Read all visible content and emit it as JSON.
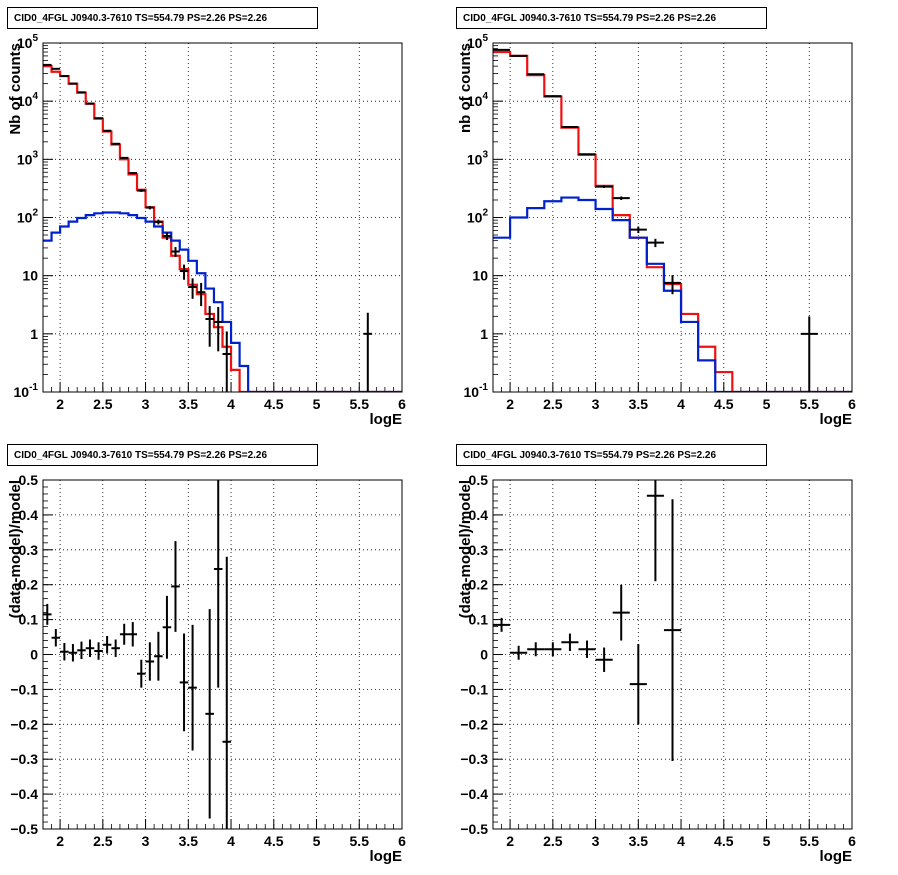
{
  "colors": {
    "data": "#000000",
    "total_model": "#ee1111",
    "source_model": "#0022cc",
    "grid": "#000000"
  },
  "chart_data": [
    {
      "id": "top-left",
      "type": "line",
      "title": "CID0_4FGL J0940.3-7610 TS=554.79 PS=2.26 PS=2.26",
      "xlabel": "logE",
      "ylabel": "Nb of counts",
      "xlim": [
        1.8,
        6.0
      ],
      "ylim": [
        0.1,
        100000
      ],
      "yscale": "log",
      "grid": true,
      "xticks": [
        "2",
        "2.5",
        "3",
        "3.5",
        "4",
        "4.5",
        "5",
        "5.5",
        "6"
      ],
      "yticks": [
        "10^-1",
        "1",
        "10",
        "10^2",
        "10^3",
        "10^4",
        "10^5"
      ],
      "series": [
        {
          "kind": "model",
          "color_key": "total_model",
          "edges": [
            1.8,
            1.9,
            2.0,
            2.1,
            2.2,
            2.3,
            2.4,
            2.5,
            2.6,
            2.7,
            2.8,
            2.9,
            3.0,
            3.1,
            3.2,
            3.3,
            3.4,
            3.5,
            3.6,
            3.7,
            3.8,
            3.9,
            4.0,
            4.1,
            4.2,
            4.3,
            4.4,
            6.0
          ],
          "values": [
            40000,
            32000,
            27000,
            20000,
            14000,
            9000,
            5000,
            3000,
            1800,
            1000,
            550,
            300,
            150,
            85,
            45,
            22,
            13,
            7,
            4.8,
            2.2,
            1.3,
            0.6,
            0.24,
            0.1,
            0.1,
            0.1,
            0.1
          ]
        },
        {
          "kind": "model",
          "color_key": "source_model",
          "edges": [
            1.8,
            1.9,
            2.0,
            2.1,
            2.2,
            2.3,
            2.4,
            2.5,
            2.6,
            2.7,
            2.8,
            2.9,
            3.0,
            3.1,
            3.2,
            3.3,
            3.4,
            3.5,
            3.6,
            3.7,
            3.8,
            3.9,
            4.0,
            4.1,
            4.2,
            4.3,
            6.0
          ],
          "values": [
            40,
            55,
            70,
            85,
            98,
            110,
            118,
            122,
            122,
            118,
            110,
            98,
            85,
            70,
            55,
            40,
            28,
            18,
            11,
            6,
            3.5,
            1.6,
            0.7,
            0.28,
            0.1,
            0.1
          ]
        },
        {
          "kind": "data",
          "color_key": "data",
          "points": [
            {
              "x": 1.85,
              "y": 42000,
              "xerr": 0.05,
              "ylo": 41500,
              "yhi": 42500
            },
            {
              "x": 1.95,
              "y": 36000,
              "xerr": 0.05,
              "ylo": 35600,
              "yhi": 36400
            },
            {
              "x": 2.05,
              "y": 27000,
              "xerr": 0.05,
              "ylo": 26700,
              "yhi": 27300
            },
            {
              "x": 2.15,
              "y": 20000,
              "xerr": 0.05,
              "ylo": 19700,
              "yhi": 20300
            },
            {
              "x": 2.25,
              "y": 14200,
              "xerr": 0.05,
              "ylo": 14000,
              "yhi": 14400
            },
            {
              "x": 2.35,
              "y": 9100,
              "xerr": 0.05,
              "ylo": 9000,
              "yhi": 9200
            },
            {
              "x": 2.45,
              "y": 5100,
              "xerr": 0.05,
              "ylo": 5000,
              "yhi": 5200
            },
            {
              "x": 2.55,
              "y": 3100,
              "xerr": 0.05,
              "ylo": 3040,
              "yhi": 3160
            },
            {
              "x": 2.65,
              "y": 1850,
              "xerr": 0.05,
              "ylo": 1810,
              "yhi": 1890
            },
            {
              "x": 2.75,
              "y": 1060,
              "xerr": 0.05,
              "ylo": 1030,
              "yhi": 1090
            },
            {
              "x": 2.85,
              "y": 580,
              "xerr": 0.05,
              "ylo": 560,
              "yhi": 600
            },
            {
              "x": 2.95,
              "y": 290,
              "xerr": 0.05,
              "ylo": 275,
              "yhi": 305
            },
            {
              "x": 3.05,
              "y": 148,
              "xerr": 0.05,
              "ylo": 138,
              "yhi": 158
            },
            {
              "x": 3.15,
              "y": 84,
              "xerr": 0.05,
              "ylo": 76,
              "yhi": 92
            },
            {
              "x": 3.25,
              "y": 48,
              "xerr": 0.05,
              "ylo": 41,
              "yhi": 55
            },
            {
              "x": 3.35,
              "y": 26,
              "xerr": 0.05,
              "ylo": 21,
              "yhi": 31
            },
            {
              "x": 3.45,
              "y": 12,
              "xerr": 0.05,
              "ylo": 8.5,
              "yhi": 15.5
            },
            {
              "x": 3.55,
              "y": 6.4,
              "xerr": 0.05,
              "ylo": 4,
              "yhi": 9
            },
            {
              "x": 3.65,
              "y": 5.2,
              "xerr": 0.05,
              "ylo": 3,
              "yhi": 7.5
            },
            {
              "x": 3.75,
              "y": 1.8,
              "xerr": 0.05,
              "ylo": 0.6,
              "yhi": 3
            },
            {
              "x": 3.85,
              "y": 1.6,
              "xerr": 0.05,
              "ylo": 0.5,
              "yhi": 2.9
            },
            {
              "x": 3.95,
              "y": 0.45,
              "xerr": 0.05,
              "ylo": 0.1,
              "yhi": 1.1
            },
            {
              "x": 5.6,
              "y": 1.0,
              "xerr": 0.05,
              "ylo": 0.1,
              "yhi": 2.3
            }
          ]
        }
      ]
    },
    {
      "id": "top-right",
      "type": "line",
      "title": "CID0_4FGL J0940.3-7610 TS=554.79 PS=2.26 PS=2.26",
      "xlabel": "logE",
      "ylabel": "nb of counts",
      "xlim": [
        1.8,
        6.0
      ],
      "ylim": [
        0.1,
        100000
      ],
      "yscale": "log",
      "grid": true,
      "xticks": [
        "2",
        "2.5",
        "3",
        "3.5",
        "4",
        "4.5",
        "5",
        "5.5",
        "6"
      ],
      "yticks": [
        "10^-1",
        "1",
        "10",
        "10^2",
        "10^3",
        "10^4",
        "10^5"
      ],
      "series": [
        {
          "kind": "model",
          "color_key": "total_model",
          "edges": [
            1.8,
            2.0,
            2.2,
            2.4,
            2.6,
            2.8,
            3.0,
            3.2,
            3.4,
            3.6,
            3.8,
            4.0,
            4.2,
            4.4,
            4.6,
            6.0
          ],
          "values": [
            70000,
            60000,
            28000,
            12000,
            3500,
            1200,
            350,
            110,
            45,
            14,
            7.2,
            2.2,
            0.6,
            0.22,
            0.1
          ]
        },
        {
          "kind": "model",
          "color_key": "source_model",
          "edges": [
            1.8,
            2.0,
            2.2,
            2.4,
            2.6,
            2.8,
            3.0,
            3.2,
            3.4,
            3.6,
            3.8,
            4.0,
            4.2,
            4.4,
            6.0
          ],
          "values": [
            45,
            100,
            145,
            190,
            220,
            200,
            140,
            90,
            45,
            16,
            5.5,
            1.6,
            0.35,
            0.1
          ]
        },
        {
          "kind": "data",
          "color_key": "data",
          "points": [
            {
              "x": 1.9,
              "y": 76000,
              "xerr": 0.1,
              "ylo": 75400,
              "yhi": 76600
            },
            {
              "x": 2.1,
              "y": 60000,
              "xerr": 0.1,
              "ylo": 59500,
              "yhi": 60500
            },
            {
              "x": 2.3,
              "y": 29000,
              "xerr": 0.1,
              "ylo": 28700,
              "yhi": 29300
            },
            {
              "x": 2.5,
              "y": 12200,
              "xerr": 0.1,
              "ylo": 12000,
              "yhi": 12400
            },
            {
              "x": 2.7,
              "y": 3600,
              "xerr": 0.1,
              "ylo": 3540,
              "yhi": 3660
            },
            {
              "x": 2.9,
              "y": 1220,
              "xerr": 0.1,
              "ylo": 1190,
              "yhi": 1250
            },
            {
              "x": 3.1,
              "y": 340,
              "xerr": 0.1,
              "ylo": 322,
              "yhi": 358
            },
            {
              "x": 3.3,
              "y": 215,
              "xerr": 0.1,
              "ylo": 200,
              "yhi": 230
            },
            {
              "x": 3.5,
              "y": 62,
              "xerr": 0.1,
              "ylo": 54,
              "yhi": 70
            },
            {
              "x": 3.7,
              "y": 37,
              "xerr": 0.1,
              "ylo": 31,
              "yhi": 43
            },
            {
              "x": 3.9,
              "y": 7.5,
              "xerr": 0.1,
              "ylo": 4.8,
              "yhi": 10.2
            },
            {
              "x": 5.5,
              "y": 1.0,
              "xerr": 0.1,
              "ylo": 0.1,
              "yhi": 2.0
            }
          ]
        }
      ]
    },
    {
      "id": "bottom-left",
      "type": "scatter",
      "title": "CID0_4FGL J0940.3-7610 TS=554.79 PS=2.26 PS=2.26",
      "xlabel": "logE",
      "ylabel": "(data-model)/model",
      "xlim": [
        1.8,
        6.0
      ],
      "ylim": [
        -0.5,
        0.5
      ],
      "yscale": "linear",
      "grid": true,
      "xticks": [
        "2",
        "2.5",
        "3",
        "3.5",
        "4",
        "4.5",
        "5",
        "5.5",
        "6"
      ],
      "yticks": [
        "−0.5",
        "−0.4",
        "−0.3",
        "−0.2",
        "−0.1",
        "0",
        "0.1",
        "0.2",
        "0.3",
        "0.4",
        "0.5"
      ],
      "series": [
        {
          "kind": "data",
          "color_key": "data",
          "points": [
            {
              "x": 1.85,
              "y": 0.115,
              "xerr": 0.05,
              "yerr": 0.03
            },
            {
              "x": 1.95,
              "y": 0.048,
              "xerr": 0.05,
              "yerr": 0.025
            },
            {
              "x": 2.05,
              "y": 0.008,
              "xerr": 0.05,
              "yerr": 0.025
            },
            {
              "x": 2.15,
              "y": 0.005,
              "xerr": 0.05,
              "yerr": 0.025
            },
            {
              "x": 2.25,
              "y": 0.012,
              "xerr": 0.05,
              "yerr": 0.025
            },
            {
              "x": 2.35,
              "y": 0.018,
              "xerr": 0.05,
              "yerr": 0.025
            },
            {
              "x": 2.45,
              "y": 0.01,
              "xerr": 0.05,
              "yerr": 0.025
            },
            {
              "x": 2.55,
              "y": 0.028,
              "xerr": 0.05,
              "yerr": 0.025
            },
            {
              "x": 2.65,
              "y": 0.018,
              "xerr": 0.05,
              "yerr": 0.025
            },
            {
              "x": 2.75,
              "y": 0.058,
              "xerr": 0.05,
              "yerr": 0.03
            },
            {
              "x": 2.85,
              "y": 0.058,
              "xerr": 0.05,
              "yerr": 0.035
            },
            {
              "x": 2.95,
              "y": -0.055,
              "xerr": 0.05,
              "yerr": 0.04
            },
            {
              "x": 3.05,
              "y": -0.02,
              "xerr": 0.05,
              "yerr": 0.055
            },
            {
              "x": 3.15,
              "y": -0.005,
              "xerr": 0.05,
              "yerr": 0.07
            },
            {
              "x": 3.25,
              "y": 0.078,
              "xerr": 0.05,
              "yerr": 0.09
            },
            {
              "x": 3.35,
              "y": 0.195,
              "xerr": 0.05,
              "yerr": 0.13
            },
            {
              "x": 3.45,
              "y": -0.08,
              "xerr": 0.05,
              "yerr": 0.14
            },
            {
              "x": 3.55,
              "y": -0.095,
              "xerr": 0.05,
              "yerr": 0.18
            },
            {
              "x": 3.75,
              "y": -0.17,
              "xerr": 0.05,
              "yerr": 0.3
            },
            {
              "x": 3.85,
              "y": 0.245,
              "xerr": 0.05,
              "yerr": 0.34
            },
            {
              "x": 3.95,
              "y": -0.25,
              "xerr": 0.05,
              "yerr": 0.53
            }
          ]
        }
      ]
    },
    {
      "id": "bottom-right",
      "type": "scatter",
      "title": "CID0_4FGL J0940.3-7610 TS=554.79 PS=2.26 PS=2.26",
      "xlabel": "logE",
      "ylabel": "(data-model)/model",
      "xlim": [
        1.8,
        6.0
      ],
      "ylim": [
        -0.5,
        0.5
      ],
      "yscale": "linear",
      "grid": true,
      "xticks": [
        "2",
        "2.5",
        "3",
        "3.5",
        "4",
        "4.5",
        "5",
        "5.5",
        "6"
      ],
      "yticks": [
        "−0.5",
        "−0.4",
        "−0.3",
        "−0.2",
        "−0.1",
        "0",
        "0.1",
        "0.2",
        "0.3",
        "0.4",
        "0.5"
      ],
      "series": [
        {
          "kind": "data",
          "color_key": "data",
          "points": [
            {
              "x": 1.9,
              "y": 0.085,
              "xerr": 0.1,
              "yerr": 0.02
            },
            {
              "x": 2.1,
              "y": 0.005,
              "xerr": 0.1,
              "yerr": 0.02
            },
            {
              "x": 2.3,
              "y": 0.015,
              "xerr": 0.1,
              "yerr": 0.02
            },
            {
              "x": 2.5,
              "y": 0.015,
              "xerr": 0.1,
              "yerr": 0.02
            },
            {
              "x": 2.7,
              "y": 0.035,
              "xerr": 0.1,
              "yerr": 0.025
            },
            {
              "x": 2.9,
              "y": 0.015,
              "xerr": 0.1,
              "yerr": 0.025
            },
            {
              "x": 3.1,
              "y": -0.015,
              "xerr": 0.1,
              "yerr": 0.035
            },
            {
              "x": 3.3,
              "y": 0.12,
              "xerr": 0.1,
              "yerr": 0.08
            },
            {
              "x": 3.5,
              "y": -0.085,
              "xerr": 0.1,
              "yerr": 0.115
            },
            {
              "x": 3.7,
              "y": 0.455,
              "xerr": 0.1,
              "yerr": 0.245
            },
            {
              "x": 3.9,
              "y": 0.07,
              "xerr": 0.1,
              "yerr": 0.375
            }
          ]
        }
      ]
    }
  ]
}
